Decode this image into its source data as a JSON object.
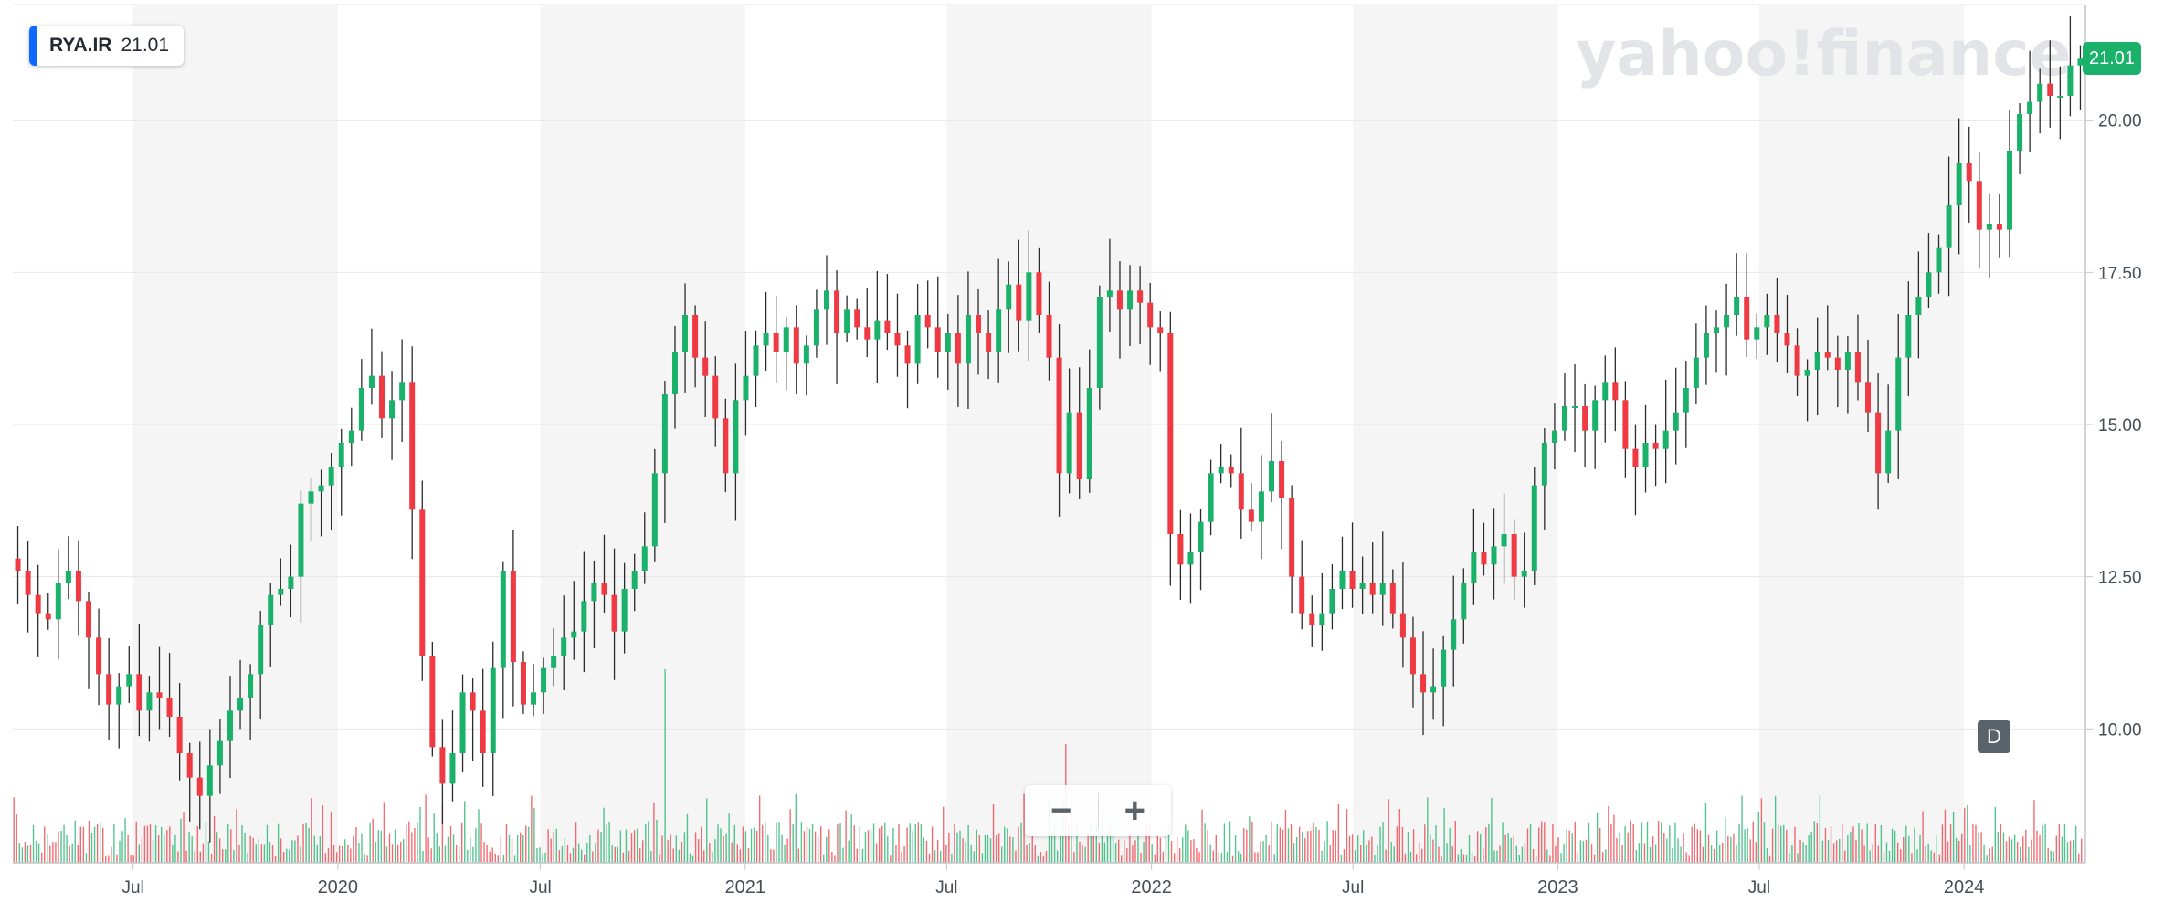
{
  "ticker": {
    "symbol": "RYA.IR",
    "price": "21.01"
  },
  "watermark": "yahoo!finance",
  "last_price_label": "21.01",
  "interval_label": "D",
  "zoom": {
    "out_label": "−",
    "in_label": "+"
  },
  "colors": {
    "up": "#1ab26b",
    "down": "#ef3a44",
    "band": "#f5f5f5",
    "grid": "#e6e7e9",
    "last": "#1ab26b",
    "axis": "#c4c7cb"
  },
  "chart_data": {
    "type": "candlestick",
    "title": "",
    "xlabel": "",
    "ylabel": "",
    "x_range": [
      "2019-03-15",
      "2024-04-19"
    ],
    "ylim": [
      7.8,
      21.9
    ],
    "yticks": [
      "10.00",
      "12.50",
      "15.00",
      "17.50",
      "20.00"
    ],
    "xticks": [
      {
        "date": "2019-07-01",
        "label": "Jul"
      },
      {
        "date": "2020-01-01",
        "label": "2020"
      },
      {
        "date": "2020-07-01",
        "label": "Jul"
      },
      {
        "date": "2021-01-01",
        "label": "2021"
      },
      {
        "date": "2021-07-01",
        "label": "Jul"
      },
      {
        "date": "2022-01-01",
        "label": "2022"
      },
      {
        "date": "2022-07-01",
        "label": "Jul"
      },
      {
        "date": "2023-01-01",
        "label": "2023"
      },
      {
        "date": "2023-07-01",
        "label": "Jul"
      },
      {
        "date": "2024-01-01",
        "label": "2024"
      }
    ],
    "grid": true,
    "shaded_half_years": true,
    "last_price": 21.01,
    "weekly_closes": [
      12.6,
      12.2,
      11.9,
      11.8,
      12.4,
      12.6,
      12.1,
      11.5,
      10.9,
      10.4,
      10.7,
      10.9,
      10.3,
      10.6,
      10.5,
      10.2,
      9.6,
      9.2,
      8.9,
      9.4,
      9.8,
      10.3,
      10.5,
      10.9,
      11.7,
      12.2,
      12.3,
      12.5,
      13.7,
      13.9,
      14.0,
      14.3,
      14.7,
      14.9,
      15.6,
      15.8,
      15.1,
      15.4,
      15.7,
      13.6,
      11.2,
      9.7,
      9.1,
      9.6,
      10.6,
      10.3,
      9.6,
      11.0,
      12.6,
      11.1,
      10.4,
      10.6,
      11.0,
      11.2,
      11.5,
      11.6,
      12.1,
      12.4,
      12.2,
      11.6,
      12.3,
      12.6,
      13.0,
      14.2,
      15.5,
      16.2,
      16.8,
      16.1,
      15.8,
      15.1,
      14.2,
      15.4,
      15.8,
      16.3,
      16.5,
      16.2,
      16.6,
      16.0,
      16.3,
      16.9,
      17.2,
      16.5,
      16.9,
      16.6,
      16.4,
      16.7,
      16.5,
      16.3,
      16.0,
      16.8,
      16.6,
      16.2,
      16.5,
      16.0,
      16.8,
      16.5,
      16.2,
      16.9,
      17.3,
      16.7,
      17.5,
      16.8,
      16.1,
      14.2,
      15.2,
      14.1,
      15.6,
      17.1,
      17.2,
      16.9,
      17.2,
      17.0,
      16.6,
      16.5,
      13.2,
      12.7,
      12.9,
      13.4,
      14.2,
      14.3,
      14.2,
      13.6,
      13.4,
      13.9,
      14.4,
      13.8,
      12.5,
      11.9,
      11.7,
      11.9,
      12.3,
      12.6,
      12.3,
      12.4,
      12.2,
      12.4,
      11.9,
      11.5,
      10.9,
      10.6,
      10.7,
      11.3,
      11.8,
      12.4,
      12.9,
      12.7,
      13.0,
      13.2,
      12.5,
      12.6,
      14.0,
      14.7,
      14.9,
      15.3,
      15.3,
      14.9,
      15.4,
      15.7,
      15.4,
      14.6,
      14.3,
      14.7,
      14.6,
      14.9,
      15.2,
      15.6,
      16.1,
      16.5,
      16.6,
      16.8,
      17.1,
      16.4,
      16.6,
      16.8,
      16.5,
      16.3,
      15.8,
      15.9,
      16.2,
      16.1,
      15.9,
      16.2,
      15.7,
      15.2,
      14.2,
      14.9,
      16.1,
      16.8,
      17.1,
      17.5,
      17.9,
      18.6,
      19.3,
      19.0,
      18.2,
      18.3,
      18.2,
      19.5,
      20.1,
      20.3,
      20.6,
      20.4,
      20.4,
      20.9,
      21.01
    ],
    "volume_spikes": [
      {
        "date": "2020-10-22",
        "color": "up"
      },
      {
        "date": "2021-10-16",
        "color": "down"
      }
    ]
  }
}
